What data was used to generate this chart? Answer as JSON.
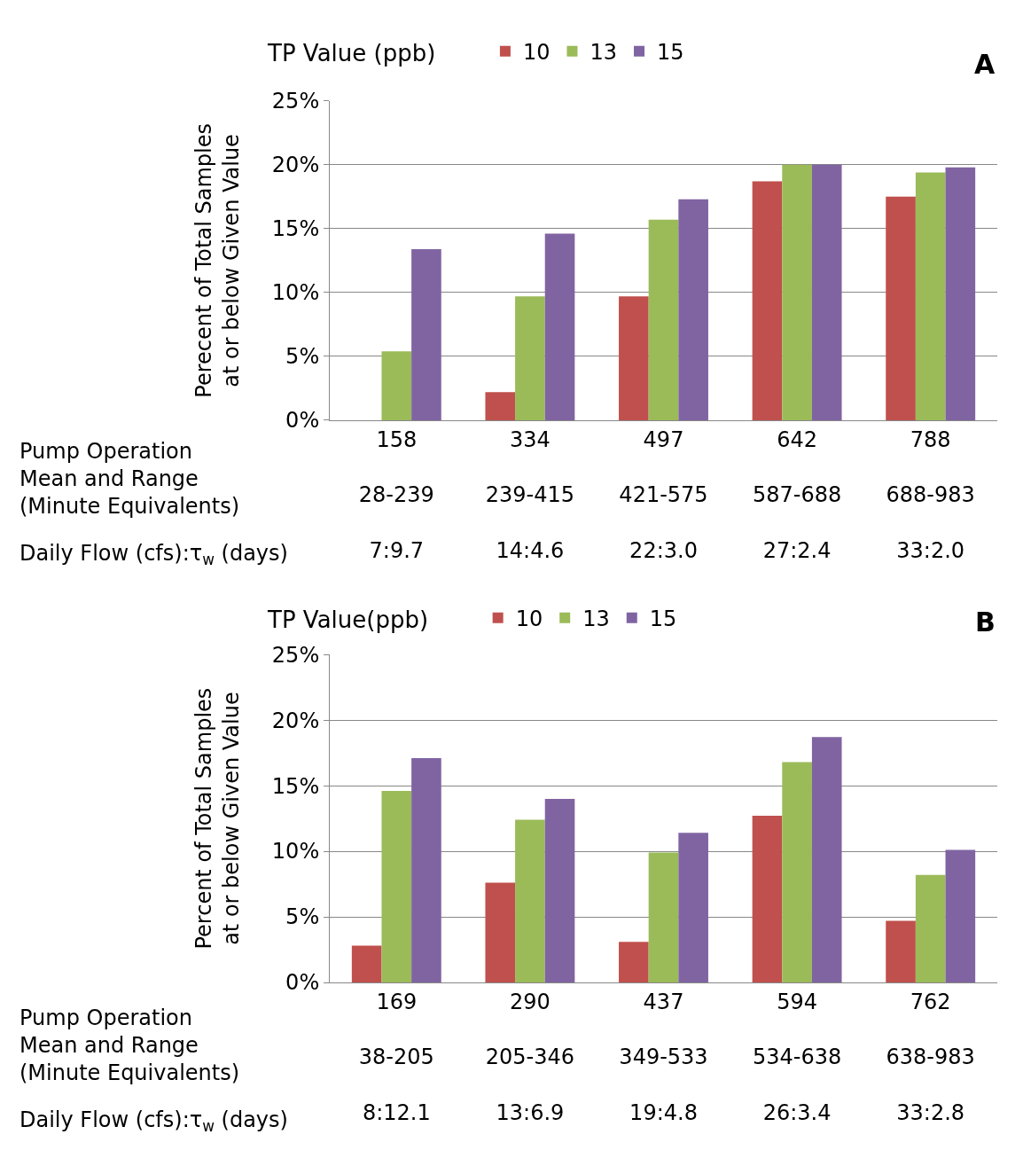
{
  "chart_data": [
    {
      "type": "bar",
      "legend_title": "TP Value (ppb)",
      "legend": "top",
      "grid": "y",
      "ylabel": "Perecent of Total Samples\nat or below Given Value",
      "categories": [
        "158\n\n28-239\n\n7:9.7",
        "334\n\n239-415\n\n14:4.6",
        "497\n\n421-575\n\n22:3.0",
        "642\n\n587-688\n\n27:2.4",
        "788\n\n688-983\n\n33:2.0"
      ],
      "series": [
        {
          "name": "10",
          "color": "#c0504d",
          "values": [
            0,
            2.2,
            9.7,
            18.7,
            17.5
          ]
        },
        {
          "name": "13",
          "color": "#9bbb59",
          "values": [
            5.4,
            9.7,
            15.7,
            20.0,
            19.4
          ]
        },
        {
          "name": "15",
          "color": "#8064a2",
          "values": [
            13.4,
            14.6,
            17.3,
            20.0,
            19.8
          ]
        }
      ],
      "ylim": [
        0,
        25
      ],
      "yticks": [
        {
          "value": 0,
          "label": "0%"
        },
        {
          "value": 5,
          "label": "5%"
        },
        {
          "value": 10,
          "label": "10%"
        },
        {
          "value": 15,
          "label": "15%"
        },
        {
          "value": 20,
          "label": "20%"
        },
        {
          "value": 25,
          "label": "25%"
        }
      ],
      "annotations": [
        "A",
        "Pump Operation\nMean and Range\n(Minute Equivalents)",
        "Daily Flow (cfs):τ$_{w}$ (days)"
      ]
    },
    {
      "type": "bar",
      "legend_title": "TP Value(ppb)",
      "legend": "top",
      "grid": "y",
      "ylabel": "Percent of Total Samples\nat or below Given Value",
      "categories": [
        "169\n\n38-205\n\n8:12.1",
        "290\n\n205-346\n\n13:6.9",
        "437\n\n349-533\n\n19:4.8",
        "594\n\n534-638\n\n26:3.4",
        "762\n\n638-983\n\n33:2.8"
      ],
      "series": [
        {
          "name": "10",
          "color": "#c0504d",
          "values": [
            2.8,
            7.6,
            3.1,
            12.7,
            4.7
          ]
        },
        {
          "name": "13",
          "color": "#9bbb59",
          "values": [
            14.6,
            12.4,
            9.9,
            16.8,
            8.2
          ]
        },
        {
          "name": "15",
          "color": "#8064a2",
          "values": [
            17.1,
            14.0,
            11.4,
            18.7,
            10.1
          ]
        }
      ],
      "ylim": [
        0,
        25
      ],
      "yticks": [
        {
          "value": 0,
          "label": "0%"
        },
        {
          "value": 5,
          "label": "5%"
        },
        {
          "value": 10,
          "label": "10%"
        },
        {
          "value": 15,
          "label": "15%"
        },
        {
          "value": 20,
          "label": "20%"
        },
        {
          "value": 25,
          "label": "25%"
        }
      ],
      "annotations": [
        "B",
        "Pump Operation\nMean and Range\n(Minute Equivalents)",
        "Daily Flow (cfs):τ$_{w}$ (days)"
      ]
    }
  ]
}
